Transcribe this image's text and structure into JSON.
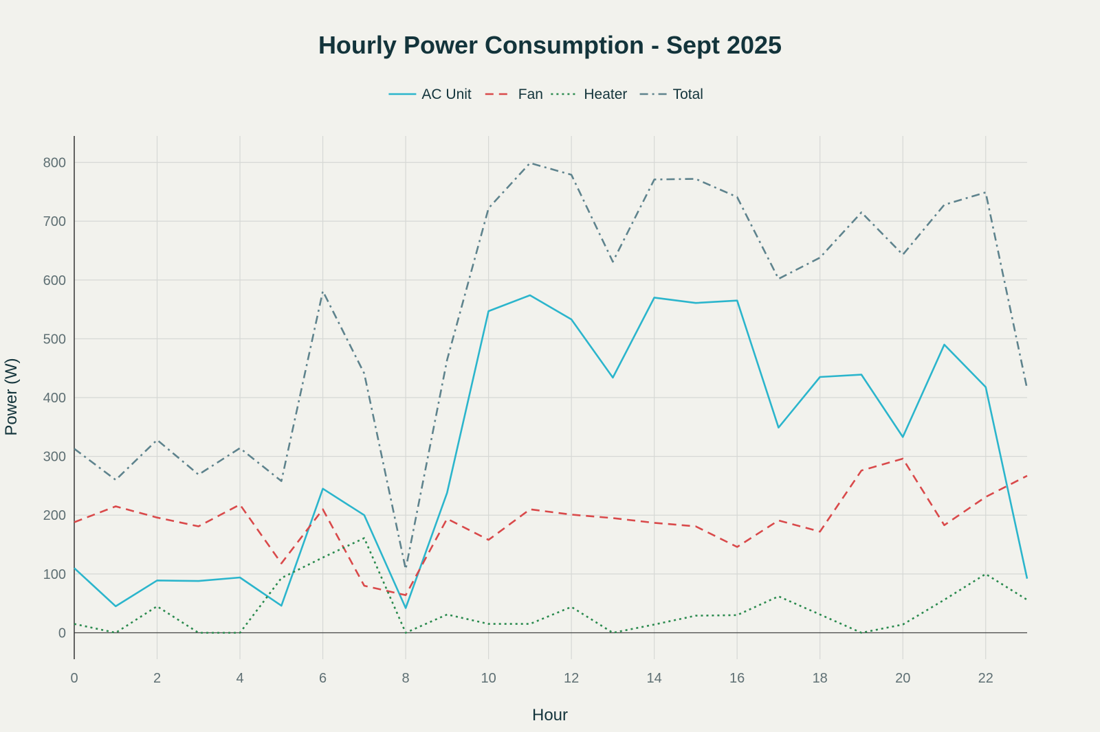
{
  "chart_data": {
    "type": "line",
    "title": "Hourly Power Consumption - Sept 2025",
    "xlabel": "Hour",
    "ylabel": "Power (W)",
    "xlim": [
      0,
      23
    ],
    "ylim": [
      -45,
      845
    ],
    "x_ticks": [
      0,
      2,
      4,
      6,
      8,
      10,
      12,
      14,
      16,
      18,
      20,
      22
    ],
    "y_ticks": [
      0,
      100,
      200,
      300,
      400,
      500,
      600,
      700,
      800
    ],
    "grid": true,
    "legend_position": "top-center",
    "x": [
      0,
      1,
      2,
      3,
      4,
      5,
      6,
      7,
      8,
      9,
      10,
      11,
      12,
      13,
      14,
      15,
      16,
      17,
      18,
      19,
      20,
      21,
      22,
      23
    ],
    "series": [
      {
        "name": "AC Unit",
        "color": "#2bb5cc",
        "dash": "solid",
        "values": [
          110,
          45,
          89,
          88,
          94,
          46,
          245,
          200,
          42,
          238,
          547,
          574,
          533,
          434,
          570,
          561,
          565,
          349,
          435,
          439,
          333,
          490,
          418,
          92
        ]
      },
      {
        "name": "Fan",
        "color": "#d9494a",
        "dash": "dash",
        "values": [
          188,
          215,
          196,
          181,
          218,
          118,
          210,
          80,
          64,
          194,
          158,
          210,
          201,
          195,
          187,
          181,
          146,
          191,
          172,
          276,
          296,
          183,
          231,
          267
        ]
      },
      {
        "name": "Heater",
        "color": "#2a8a4e",
        "dash": "dot",
        "values": [
          15,
          0,
          45,
          0,
          0,
          93,
          128,
          161,
          0,
          31,
          15,
          15,
          44,
          0,
          14,
          29,
          30,
          62,
          31,
          0,
          14,
          56,
          100,
          56
        ]
      },
      {
        "name": "Total",
        "color": "#5e838d",
        "dash": "dashdot",
        "values": [
          313,
          260,
          328,
          269,
          314,
          258,
          581,
          441,
          108,
          464,
          722,
          799,
          779,
          631,
          771,
          772,
          741,
          602,
          638,
          715,
          643,
          728,
          749,
          415
        ]
      }
    ]
  }
}
